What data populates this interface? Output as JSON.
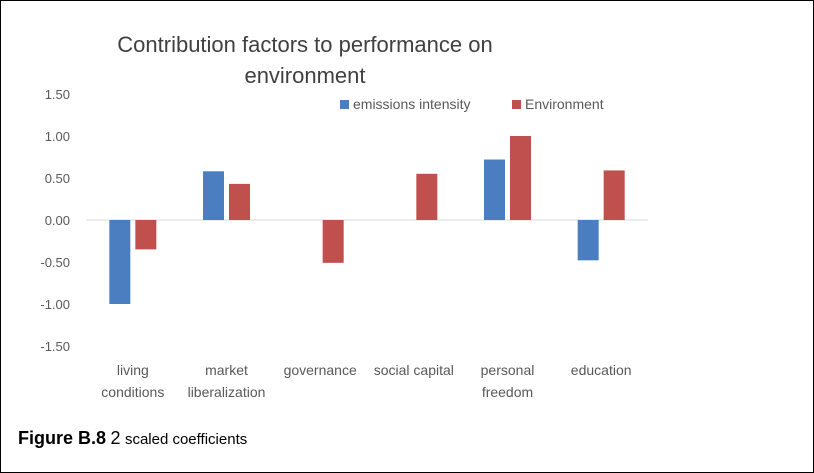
{
  "chart_data": {
    "type": "bar",
    "title": "Contribution factors to performance on environment",
    "title_lines": [
      "Contribution factors to performance on",
      "environment"
    ],
    "categories": [
      [
        "living",
        "conditions"
      ],
      [
        "market",
        "liberalization"
      ],
      [
        "governance"
      ],
      [
        "social capital"
      ],
      [
        "personal",
        "freedom"
      ],
      [
        "education"
      ]
    ],
    "series": [
      {
        "name": "emissions intensity",
        "color": "#4a7ec1",
        "values": [
          -1.0,
          0.58,
          null,
          null,
          0.72,
          -0.48
        ]
      },
      {
        "name": "Environment",
        "color": "#c0504d",
        "values": [
          -0.35,
          0.43,
          -0.51,
          0.55,
          1.0,
          0.59
        ]
      }
    ],
    "ylim": [
      -1.5,
      1.5
    ],
    "yticks": [
      1.5,
      1.0,
      0.5,
      0.0,
      -0.5,
      -1.0,
      -1.5
    ],
    "ytick_labels": [
      "1.50",
      "1.00",
      "0.50",
      "0.00",
      "-0.50",
      "-1.00",
      "-1.50"
    ],
    "legend_position": "top-right",
    "grid": false
  },
  "caption": {
    "figure_label": "Figure B.8",
    "figure_number": "2",
    "description": "scaled coefficients"
  }
}
